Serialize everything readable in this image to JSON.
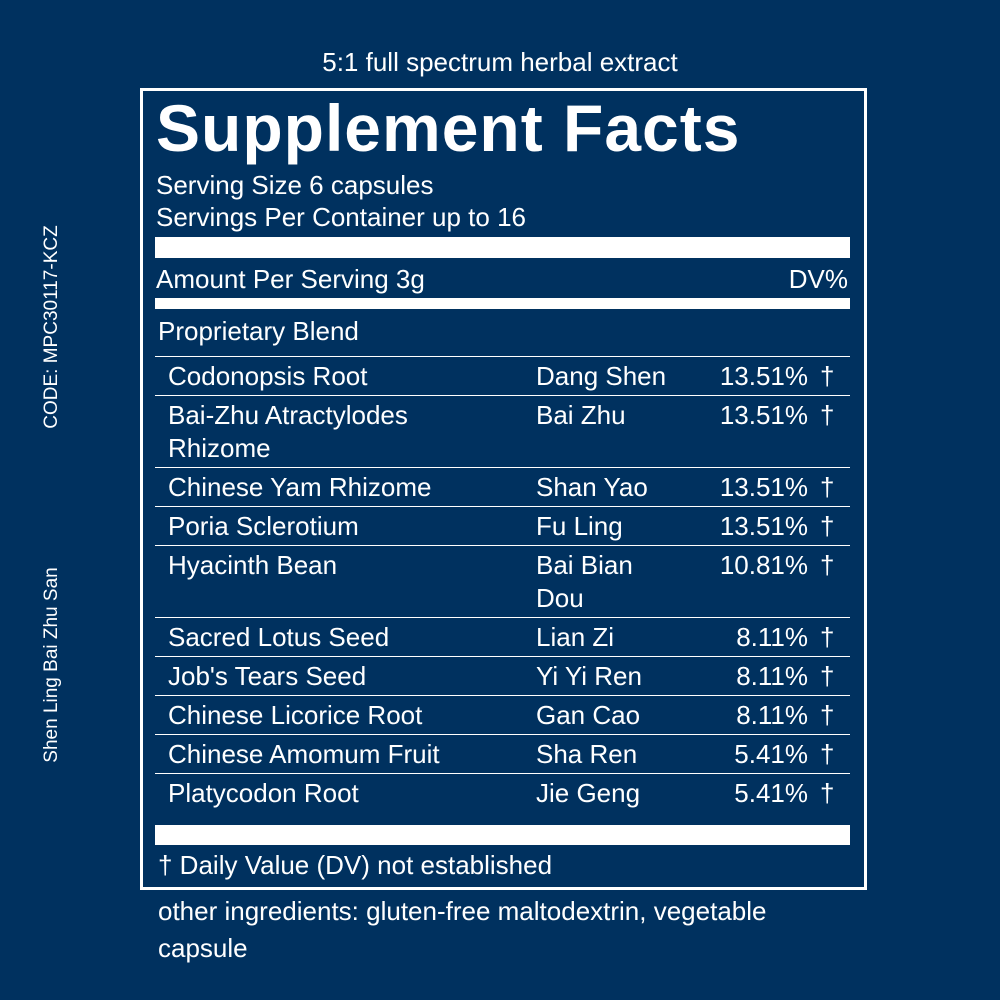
{
  "header": {
    "subtitle": "5:1 full spectrum herbal extract",
    "code": "CODE: MPC30117-KCZ",
    "formula": "Shen Ling Bai Zhu San"
  },
  "facts": {
    "title": "Supplement Facts",
    "serving_size": "Serving Size 6 capsules",
    "servings_per_container": "Servings Per Container up to 16",
    "amount_per_serving": "Amount Per Serving 3g",
    "dv_header": "DV%",
    "blend": "Proprietary Blend",
    "rows": [
      {
        "name": "Codonopsis Root",
        "pinyin": "Dang Shen",
        "percent": "13.51%",
        "mark": "†"
      },
      {
        "name": "Bai-Zhu Atractylodes Rhizome",
        "pinyin": "Bai Zhu",
        "percent": "13.51%",
        "mark": "†"
      },
      {
        "name": "Chinese Yam Rhizome",
        "pinyin": "Shan Yao",
        "percent": "13.51%",
        "mark": "†"
      },
      {
        "name": "Poria Sclerotium",
        "pinyin": "Fu Ling",
        "percent": "13.51%",
        "mark": "†"
      },
      {
        "name": "Hyacinth Bean",
        "pinyin": "Bai Bian Dou",
        "percent": "10.81%",
        "mark": "†"
      },
      {
        "name": "Sacred Lotus Seed",
        "pinyin": "Lian Zi",
        "percent": "8.11%",
        "mark": "†"
      },
      {
        "name": "Job's Tears Seed",
        "pinyin": "Yi Yi Ren",
        "percent": "8.11%",
        "mark": "†"
      },
      {
        "name": "Chinese Licorice Root",
        "pinyin": "Gan Cao",
        "percent": "8.11%",
        "mark": "†"
      },
      {
        "name": "Chinese Amomum Fruit",
        "pinyin": "Sha Ren",
        "percent": "5.41%",
        "mark": "†"
      },
      {
        "name": "Platycodon Root",
        "pinyin": "Jie Geng",
        "percent": "5.41%",
        "mark": "†"
      }
    ],
    "footnote": "† Daily Value (DV) not established"
  },
  "other_ingredients": "other ingredients: gluten-free maltodextrin, vegetable capsule"
}
